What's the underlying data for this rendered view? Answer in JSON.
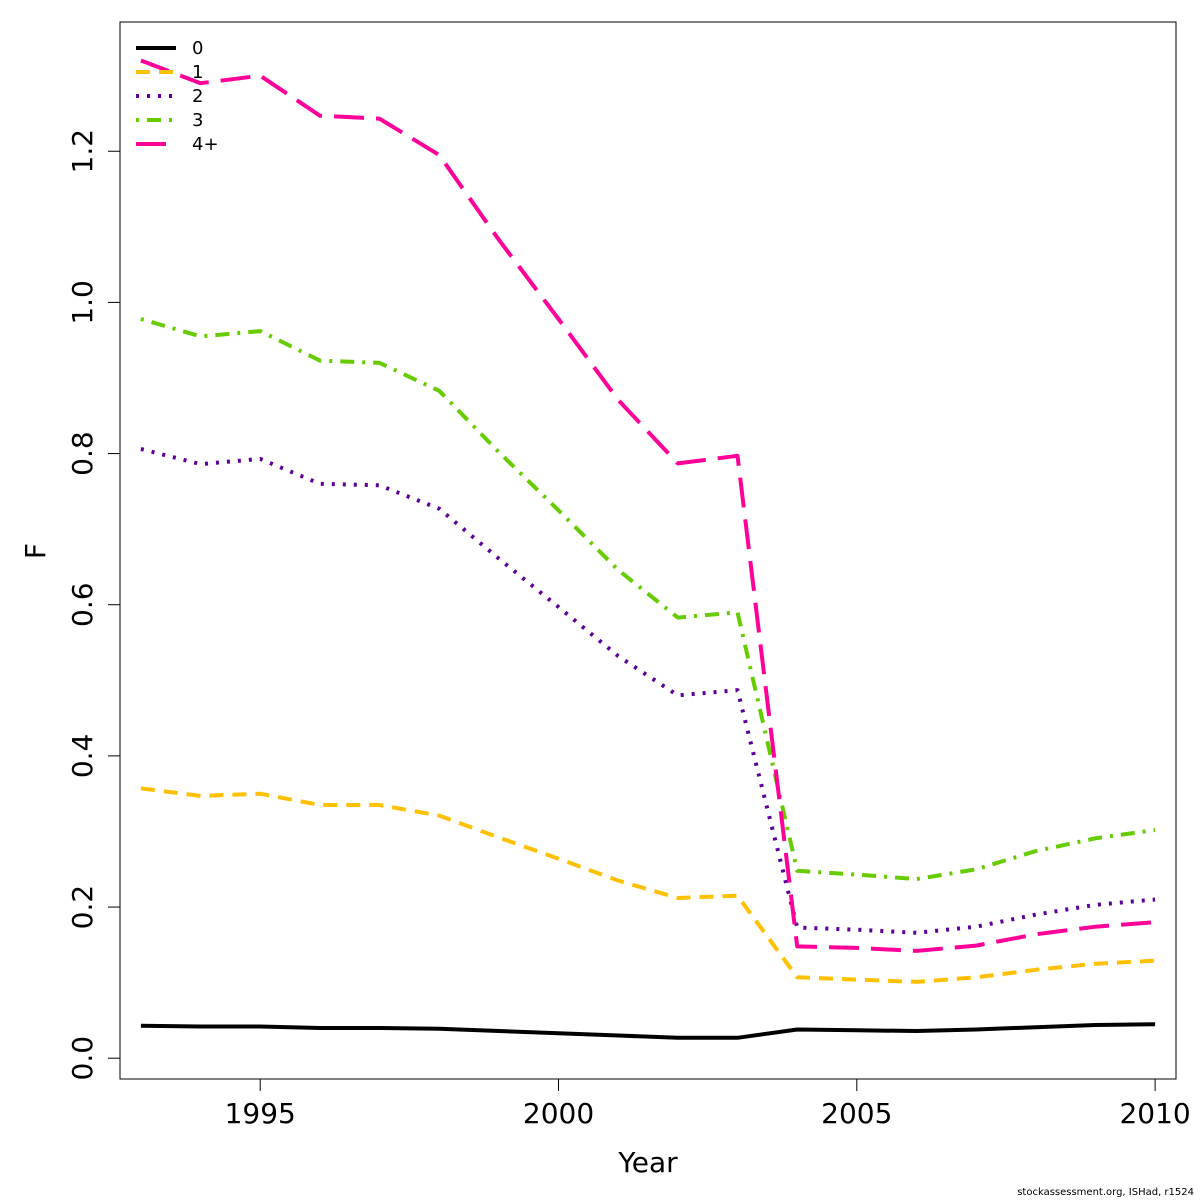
{
  "chart_data": {
    "type": "line",
    "xlabel": "Year",
    "ylabel": "F",
    "xlim": [
      1992.65,
      2010.35
    ],
    "ylim": [
      -0.0275,
      1.371
    ],
    "xticks": [
      1995,
      2000,
      2005,
      2010
    ],
    "yticks": [
      0.0,
      0.2,
      0.4,
      0.6,
      0.8,
      1.0,
      1.2
    ],
    "ytick_labels": [
      "0.0",
      "0.2",
      "0.4",
      "0.6",
      "0.8",
      "1.0",
      "1.2"
    ],
    "grid": false,
    "legend_position": "top-left",
    "x": [
      1993,
      1994,
      1995,
      1996,
      1997,
      1998,
      1999,
      2000,
      2001,
      2002,
      2003,
      2004,
      2005,
      2006,
      2007,
      2008,
      2009,
      2010
    ],
    "series": [
      {
        "name": "0",
        "color": "#000000",
        "dash": "solid",
        "values": [
          0.043,
          0.042,
          0.042,
          0.04,
          0.04,
          0.039,
          0.036,
          0.033,
          0.03,
          0.027,
          0.027,
          0.038,
          0.037,
          0.036,
          0.038,
          0.041,
          0.044,
          0.045
        ]
      },
      {
        "name": "1",
        "color": "#FFC000",
        "dash": "dashed",
        "values": [
          0.357,
          0.347,
          0.35,
          0.335,
          0.335,
          0.321,
          0.292,
          0.264,
          0.235,
          0.212,
          0.215,
          0.107,
          0.104,
          0.101,
          0.107,
          0.117,
          0.125,
          0.129
        ]
      },
      {
        "name": "2",
        "color": "#5C0099",
        "dash": "dotted",
        "values": [
          0.806,
          0.786,
          0.793,
          0.76,
          0.758,
          0.727,
          0.661,
          0.597,
          0.532,
          0.48,
          0.487,
          0.173,
          0.17,
          0.166,
          0.174,
          0.19,
          0.203,
          0.21
        ]
      },
      {
        "name": "3",
        "color": "#66CC00",
        "dash": "dotdash",
        "values": [
          0.978,
          0.955,
          0.962,
          0.923,
          0.92,
          0.883,
          0.802,
          0.725,
          0.646,
          0.583,
          0.59,
          0.248,
          0.243,
          0.237,
          0.25,
          0.274,
          0.291,
          0.302
        ]
      },
      {
        "name": "4+",
        "color": "#FF0099",
        "dash": "longdash",
        "values": [
          1.32,
          1.29,
          1.3,
          1.247,
          1.243,
          1.195,
          1.083,
          0.978,
          0.871,
          0.787,
          0.797,
          0.148,
          0.146,
          0.142,
          0.149,
          0.164,
          0.174,
          0.18
        ]
      }
    ]
  },
  "footer": "stockassessment.org, ISHad, r1524"
}
